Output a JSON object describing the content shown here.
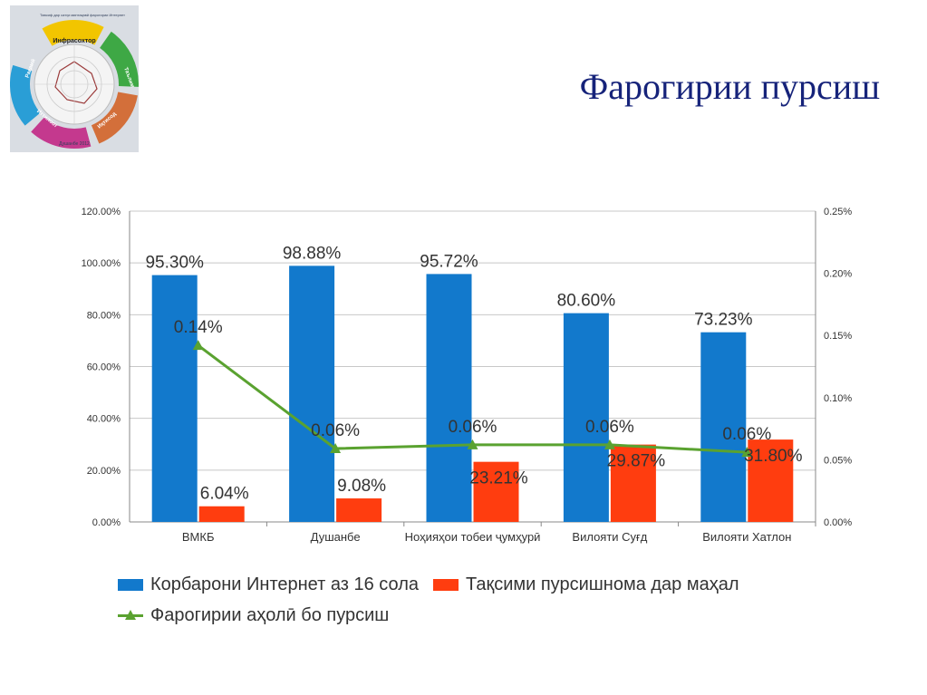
{
  "slide_title": "Фарогирии пурсиш",
  "logo": {
    "title_text": "Тавсиф дар сатҳи минтақавӣ фарогирии Интернет",
    "segments": [
      "Инфрасохтор",
      "Таълим",
      "Иқтисод",
      "Иттилоот",
      "Ҳукумат",
      "Рақамӣ"
    ],
    "footer": "Душанбе 2012"
  },
  "colors": {
    "bar1": "#1279cc",
    "bar2": "#ff3d0f",
    "line": "#5aa230",
    "grid": "#c8c8c8",
    "axis_text": "#333333"
  },
  "chart_data": {
    "type": "bar",
    "categories": [
      "ВМКБ",
      "Душанбе",
      "Ноҳияҳои тобеи ҷумҳурӣ",
      "Вилояти Суғд",
      "Вилояти Хатлон"
    ],
    "y_left": {
      "ticks": [
        "0.00%",
        "20.00%",
        "40.00%",
        "60.00%",
        "80.00%",
        "100.00%",
        "120.00%"
      ],
      "ylim": [
        0,
        120
      ]
    },
    "y_right": {
      "ticks": [
        "0.00%",
        "0.05%",
        "0.10%",
        "0.15%",
        "0.20%",
        "0.25%"
      ],
      "ylim": [
        0,
        0.25
      ]
    },
    "series": [
      {
        "name": "Корбарони Интернет аз 16 сола",
        "kind": "bar",
        "axis": "left",
        "values": [
          95.3,
          98.88,
          95.72,
          80.6,
          73.23
        ],
        "labels": [
          "95.30%",
          "98.88%",
          "95.72%",
          "80.60%",
          "73.23%"
        ]
      },
      {
        "name": "Тақсими пурсишнома дар маҳал",
        "kind": "bar",
        "axis": "left",
        "values": [
          6.04,
          9.08,
          23.21,
          29.87,
          31.8
        ],
        "labels": [
          "6.04%",
          "9.08%",
          "23.21%",
          "29.87%",
          "31.80%"
        ]
      },
      {
        "name": "Фарогирии аҳолӣ бо пурсиш",
        "kind": "line",
        "axis": "right",
        "values": [
          0.142,
          0.059,
          0.062,
          0.062,
          0.056
        ],
        "labels": [
          "0.14%",
          "0.06%",
          "0.06%",
          "0.06%",
          "0.06%"
        ]
      }
    ],
    "legend_position": "bottom",
    "grid": true
  }
}
